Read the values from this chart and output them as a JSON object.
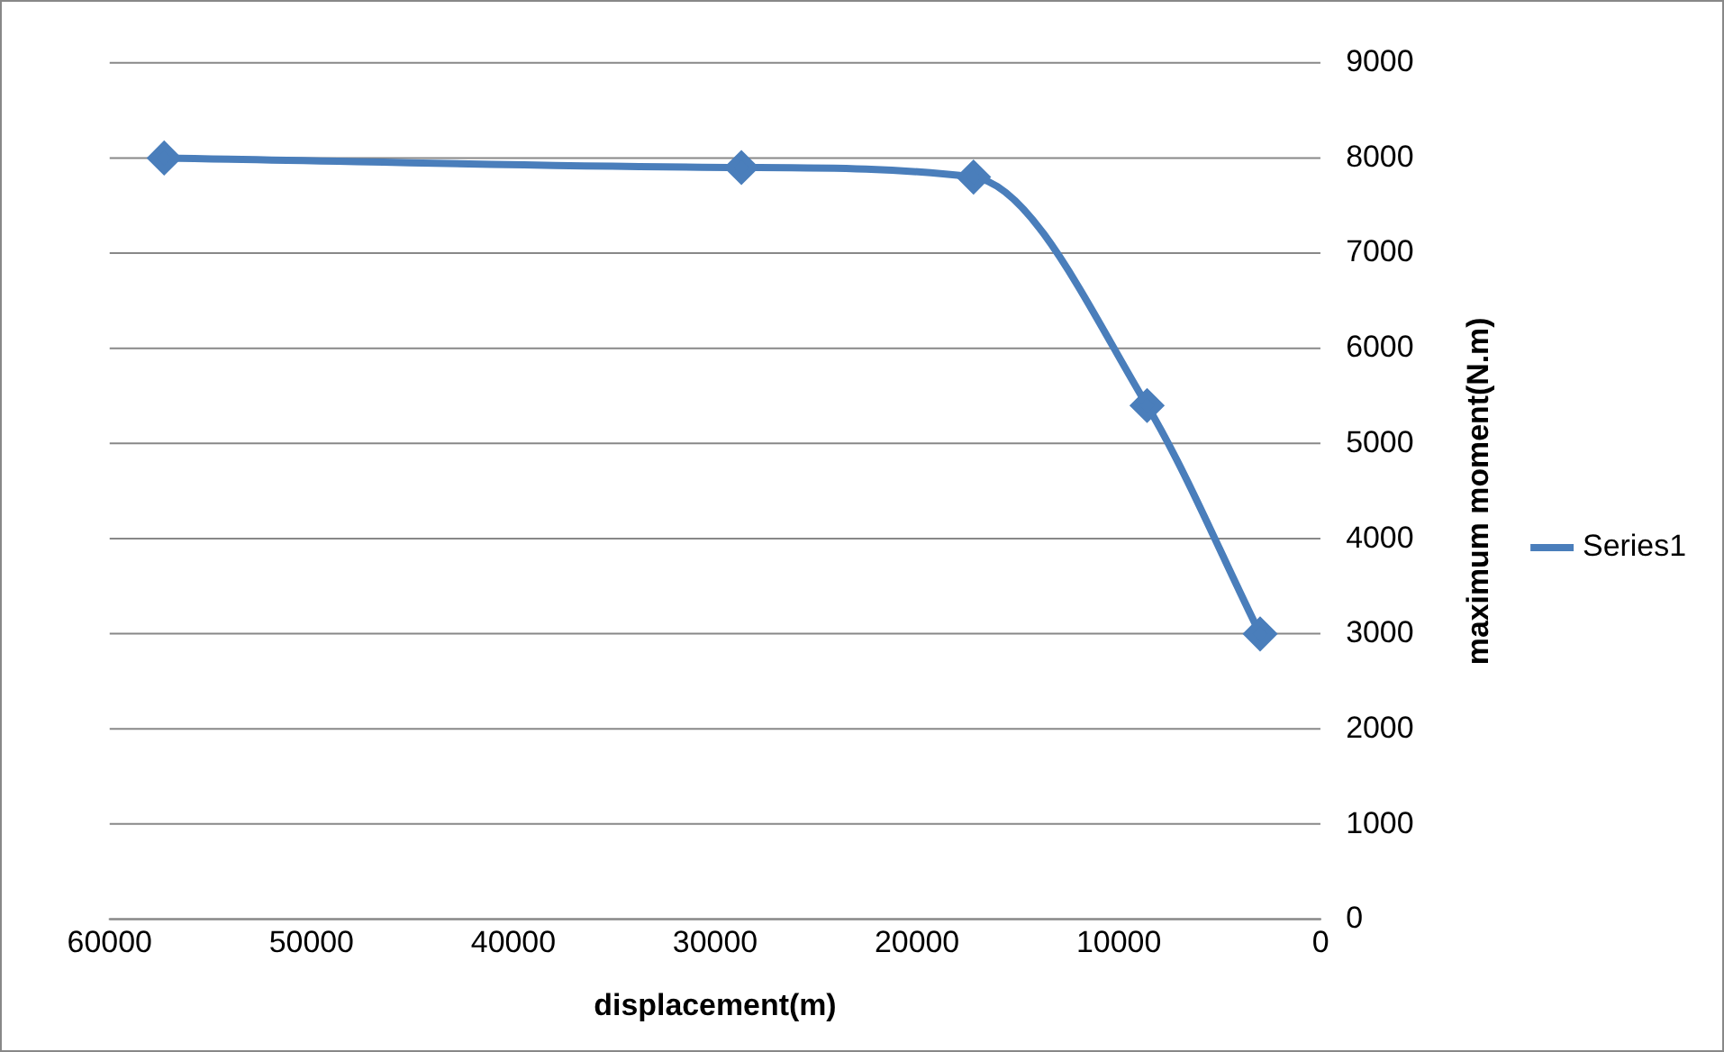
{
  "chart_data": {
    "type": "line",
    "xlabel": "displacement(m)",
    "ylabel": "maximum moment(N.m)",
    "x": [
      57300,
      28700,
      17200,
      8600,
      3000
    ],
    "series": [
      {
        "name": "Series1",
        "color": "#4a7ebb",
        "values": [
          8000,
          7900,
          7800,
          5400,
          3000
        ]
      }
    ],
    "xlim": [
      60000,
      0
    ],
    "xticks": [
      60000,
      50000,
      40000,
      30000,
      20000,
      10000,
      0
    ],
    "ylim": [
      0,
      9000
    ],
    "yticks": [
      0,
      1000,
      2000,
      3000,
      4000,
      5000,
      6000,
      7000,
      8000,
      9000
    ],
    "grid": "y",
    "legend": "right",
    "marker": "diamond",
    "line_style": "solid"
  }
}
